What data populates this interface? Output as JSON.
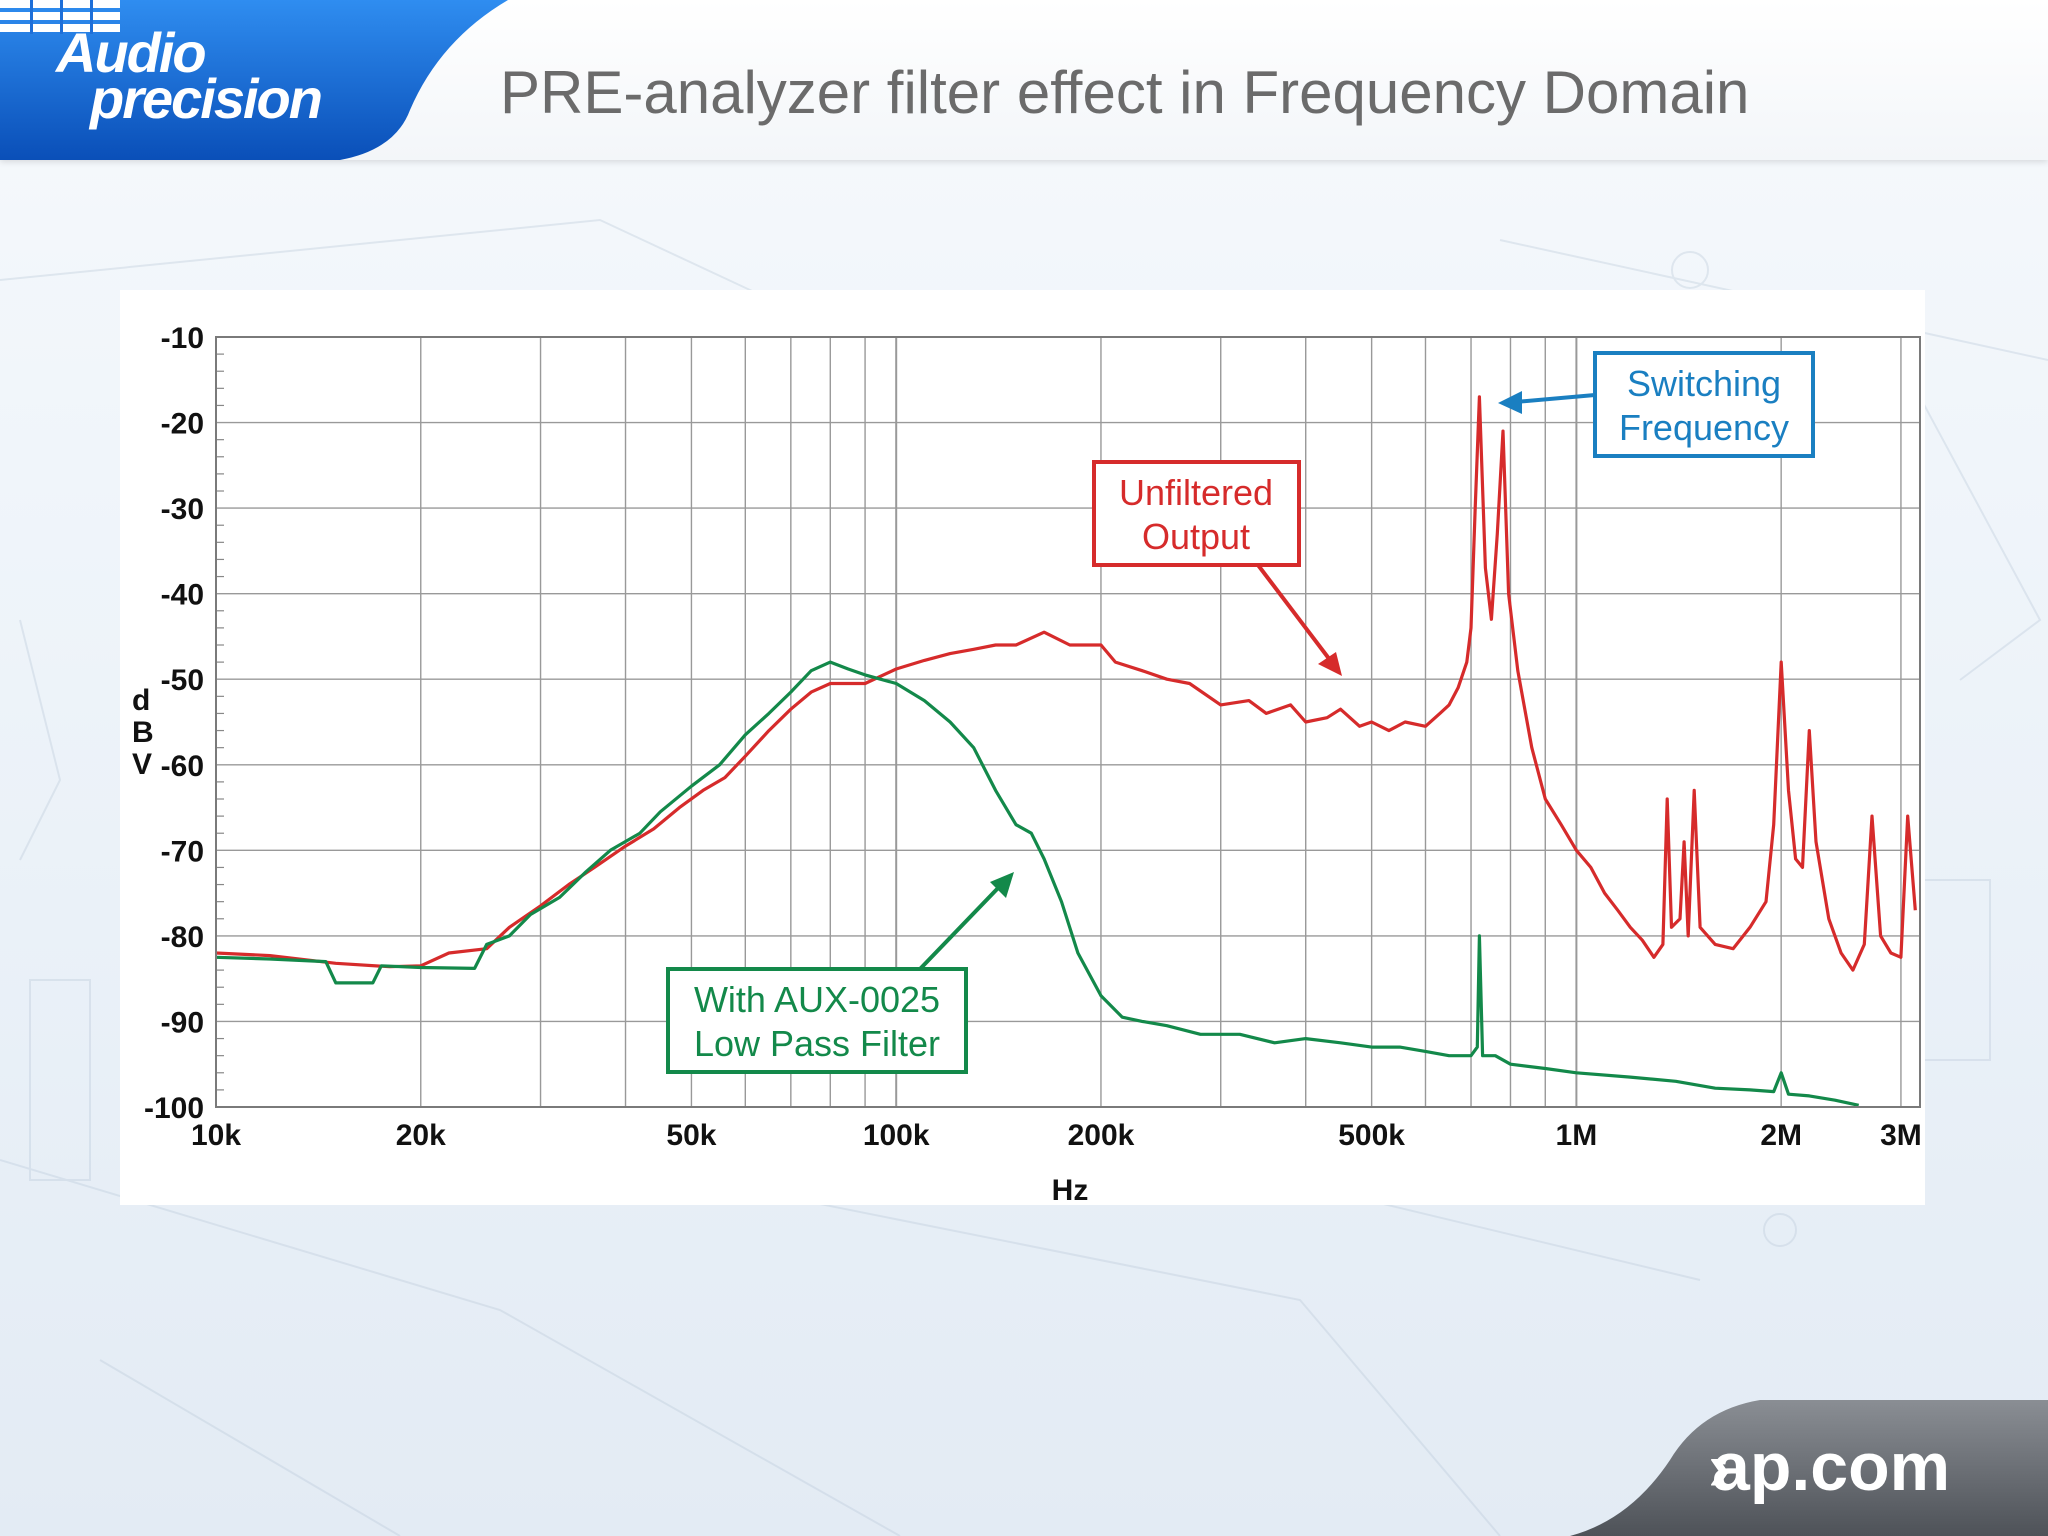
{
  "header": {
    "logo_line1": "Audio",
    "logo_line2": "precision",
    "title": "PRE-analyzer filter effect in Frequency Domain"
  },
  "footer": {
    "chevron": "›",
    "site": "ap.com"
  },
  "colors": {
    "unfiltered": "#d62b2b",
    "filtered": "#13894a",
    "callout_blue": "#1a7fc1",
    "grid": "#999999",
    "logo_blue": "#0a5fcf"
  },
  "annotations": {
    "switching": [
      "Switching",
      "Frequency"
    ],
    "unfiltered": [
      "Unfiltered",
      "Output"
    ],
    "filtered": [
      "With AUX-0025",
      "Low Pass Filter"
    ]
  },
  "chart_data": {
    "type": "line",
    "xscale": "log",
    "xlim": [
      10000,
      3200000
    ],
    "ylim": [
      -100,
      -10
    ],
    "xlabel": "Hz",
    "ylabel": "dBV",
    "x_ticks": [
      {
        "v": 10000,
        "label": "10k"
      },
      {
        "v": 20000,
        "label": "20k"
      },
      {
        "v": 50000,
        "label": "50k"
      },
      {
        "v": 100000,
        "label": "100k"
      },
      {
        "v": 200000,
        "label": "200k"
      },
      {
        "v": 500000,
        "label": "500k"
      },
      {
        "v": 1000000,
        "label": "1M"
      },
      {
        "v": 2000000,
        "label": "2M"
      },
      {
        "v": 3000000,
        "label": "3M"
      }
    ],
    "y_ticks": [
      {
        "v": -10,
        "label": "-10"
      },
      {
        "v": -20,
        "label": "-20"
      },
      {
        "v": -30,
        "label": "-30"
      },
      {
        "v": -40,
        "label": "-40"
      },
      {
        "v": -50,
        "label": "-50"
      },
      {
        "v": -60,
        "label": "-60"
      },
      {
        "v": -70,
        "label": "-70"
      },
      {
        "v": -80,
        "label": "-80"
      },
      {
        "v": -90,
        "label": "-90"
      },
      {
        "v": -100,
        "label": "-100"
      }
    ],
    "grid": true,
    "series": [
      {
        "key": "unfiltered",
        "points": [
          [
            10000,
            -82
          ],
          [
            12000,
            -82.3
          ],
          [
            15000,
            -83.2
          ],
          [
            18000,
            -83.6
          ],
          [
            20000,
            -83.5
          ],
          [
            22000,
            -82
          ],
          [
            25000,
            -81.5
          ],
          [
            27000,
            -79
          ],
          [
            30000,
            -76.5
          ],
          [
            33000,
            -74
          ],
          [
            36000,
            -72
          ],
          [
            40000,
            -69.5
          ],
          [
            44000,
            -67.5
          ],
          [
            48000,
            -65
          ],
          [
            52000,
            -63
          ],
          [
            56000,
            -61.5
          ],
          [
            60000,
            -59
          ],
          [
            65000,
            -56
          ],
          [
            70000,
            -53.5
          ],
          [
            75000,
            -51.5
          ],
          [
            80000,
            -50.5
          ],
          [
            90000,
            -50.5
          ],
          [
            100000,
            -48.8
          ],
          [
            110000,
            -47.8
          ],
          [
            120000,
            -47
          ],
          [
            130000,
            -46.5
          ],
          [
            140000,
            -46
          ],
          [
            150000,
            -46
          ],
          [
            165000,
            -44.5
          ],
          [
            180000,
            -46
          ],
          [
            200000,
            -46
          ],
          [
            210000,
            -48
          ],
          [
            230000,
            -49
          ],
          [
            250000,
            -50
          ],
          [
            270000,
            -50.5
          ],
          [
            300000,
            -53
          ],
          [
            330000,
            -52.5
          ],
          [
            350000,
            -54
          ],
          [
            380000,
            -53
          ],
          [
            400000,
            -55
          ],
          [
            430000,
            -54.5
          ],
          [
            450000,
            -53.5
          ],
          [
            480000,
            -55.5
          ],
          [
            500000,
            -55
          ],
          [
            530000,
            -56
          ],
          [
            560000,
            -55
          ],
          [
            600000,
            -55.5
          ],
          [
            630000,
            -54
          ],
          [
            650000,
            -53
          ],
          [
            670000,
            -51
          ],
          [
            690000,
            -48
          ],
          [
            700000,
            -44
          ],
          [
            710000,
            -30
          ],
          [
            720000,
            -17
          ],
          [
            735000,
            -37
          ],
          [
            750000,
            -43
          ],
          [
            765000,
            -33
          ],
          [
            780000,
            -21
          ],
          [
            795000,
            -40
          ],
          [
            820000,
            -49
          ],
          [
            860000,
            -58
          ],
          [
            900000,
            -64
          ],
          [
            950000,
            -67
          ],
          [
            1000000,
            -70
          ],
          [
            1050000,
            -72
          ],
          [
            1100000,
            -75
          ],
          [
            1150000,
            -77
          ],
          [
            1200000,
            -79
          ],
          [
            1250000,
            -80.5
          ],
          [
            1300000,
            -82.5
          ],
          [
            1340000,
            -81
          ],
          [
            1360000,
            -64
          ],
          [
            1380000,
            -79
          ],
          [
            1420000,
            -78
          ],
          [
            1440000,
            -69
          ],
          [
            1460000,
            -80
          ],
          [
            1490000,
            -63
          ],
          [
            1520000,
            -79
          ],
          [
            1600000,
            -81
          ],
          [
            1700000,
            -81.5
          ],
          [
            1800000,
            -79
          ],
          [
            1900000,
            -76
          ],
          [
            1950000,
            -67
          ],
          [
            2000000,
            -48
          ],
          [
            2050000,
            -63
          ],
          [
            2100000,
            -71
          ],
          [
            2150000,
            -72
          ],
          [
            2200000,
            -56
          ],
          [
            2250000,
            -69
          ],
          [
            2350000,
            -78
          ],
          [
            2450000,
            -82
          ],
          [
            2550000,
            -84
          ],
          [
            2650000,
            -81
          ],
          [
            2720000,
            -66
          ],
          [
            2800000,
            -80
          ],
          [
            2900000,
            -82
          ],
          [
            3000000,
            -82.5
          ],
          [
            3070000,
            -66
          ],
          [
            3150000,
            -77
          ]
        ]
      },
      {
        "key": "filtered",
        "points": [
          [
            10000,
            -82.5
          ],
          [
            12000,
            -82.7
          ],
          [
            14500,
            -83
          ],
          [
            15000,
            -85.5
          ],
          [
            17000,
            -85.5
          ],
          [
            17500,
            -83.5
          ],
          [
            20000,
            -83.7
          ],
          [
            24000,
            -83.8
          ],
          [
            25000,
            -81
          ],
          [
            27000,
            -80
          ],
          [
            29000,
            -77.5
          ],
          [
            32000,
            -75.5
          ],
          [
            35000,
            -72.5
          ],
          [
            38000,
            -70
          ],
          [
            42000,
            -68
          ],
          [
            45000,
            -65.5
          ],
          [
            50000,
            -62.5
          ],
          [
            55000,
            -60
          ],
          [
            60000,
            -56.5
          ],
          [
            65000,
            -54
          ],
          [
            70000,
            -51.5
          ],
          [
            75000,
            -49
          ],
          [
            80000,
            -48
          ],
          [
            85000,
            -48.8
          ],
          [
            90000,
            -49.5
          ],
          [
            100000,
            -50.5
          ],
          [
            110000,
            -52.5
          ],
          [
            120000,
            -55
          ],
          [
            130000,
            -58
          ],
          [
            140000,
            -63
          ],
          [
            150000,
            -67
          ],
          [
            158000,
            -68
          ],
          [
            165000,
            -71
          ],
          [
            175000,
            -76
          ],
          [
            185000,
            -82
          ],
          [
            200000,
            -87
          ],
          [
            215000,
            -89.5
          ],
          [
            230000,
            -90
          ],
          [
            250000,
            -90.5
          ],
          [
            280000,
            -91.5
          ],
          [
            320000,
            -91.5
          ],
          [
            360000,
            -92.5
          ],
          [
            400000,
            -92
          ],
          [
            450000,
            -92.5
          ],
          [
            500000,
            -93
          ],
          [
            550000,
            -93
          ],
          [
            600000,
            -93.5
          ],
          [
            650000,
            -94
          ],
          [
            700000,
            -94
          ],
          [
            715000,
            -93
          ],
          [
            720000,
            -80
          ],
          [
            728000,
            -94
          ],
          [
            760000,
            -94
          ],
          [
            800000,
            -95
          ],
          [
            900000,
            -95.5
          ],
          [
            1000000,
            -96
          ],
          [
            1200000,
            -96.5
          ],
          [
            1400000,
            -97
          ],
          [
            1600000,
            -97.8
          ],
          [
            1800000,
            -98
          ],
          [
            1950000,
            -98.2
          ],
          [
            2000000,
            -96
          ],
          [
            2050000,
            -98.5
          ],
          [
            2200000,
            -98.7
          ],
          [
            2400000,
            -99.2
          ],
          [
            2600000,
            -99.8
          ]
        ]
      }
    ]
  }
}
